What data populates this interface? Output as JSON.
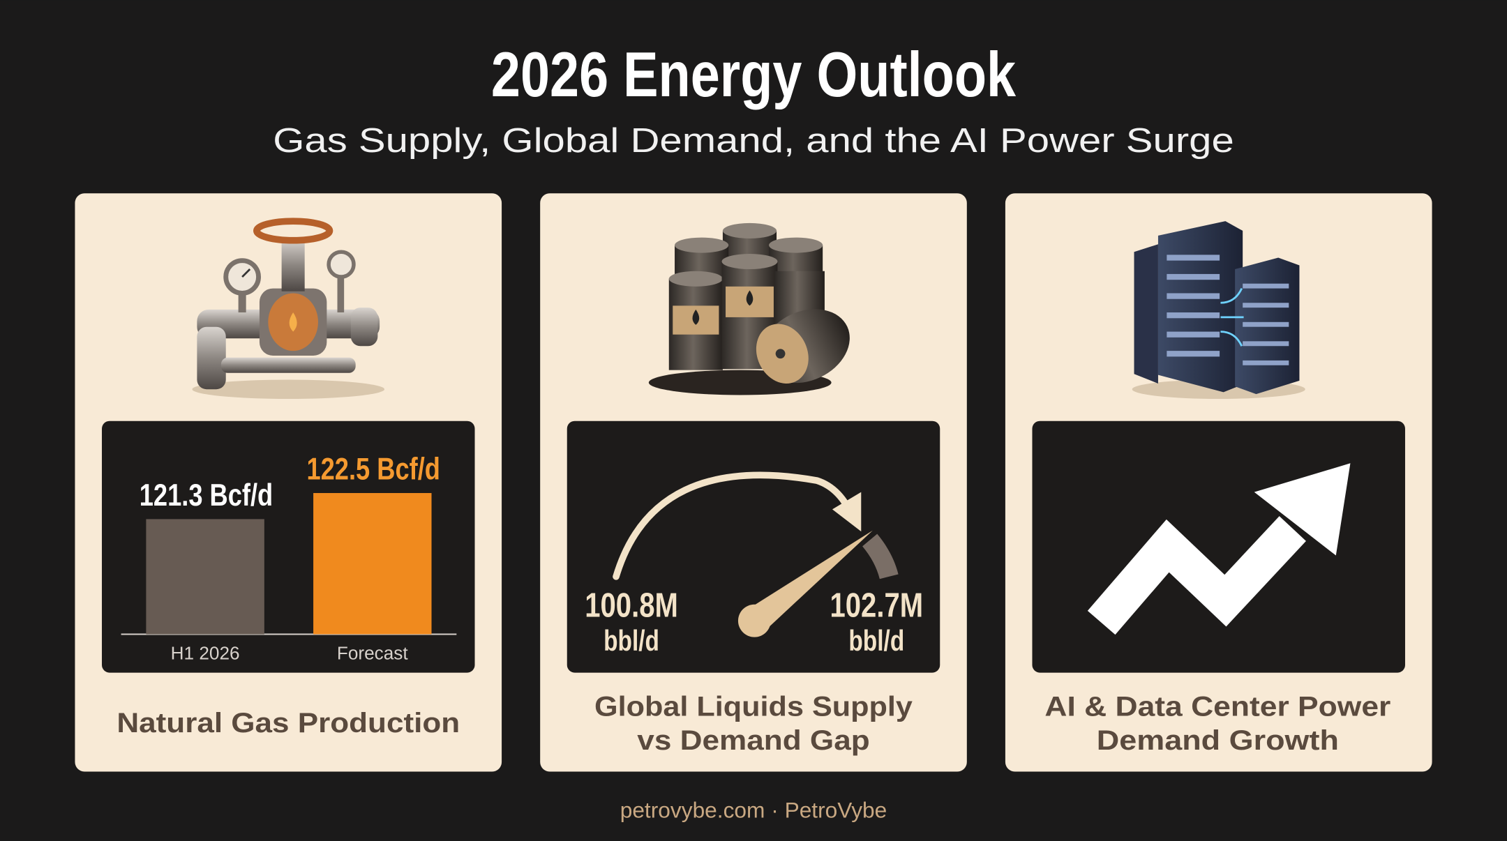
{
  "header": {
    "title": "2026 Energy Outlook",
    "subtitle": "Gas Supply, Global Demand, and the AI Power Surge"
  },
  "cards": [
    {
      "title_lines": [
        "Natural Gas Production"
      ]
    },
    {
      "title_lines": [
        "Global Liquids Supply",
        "vs Demand Gap"
      ],
      "gauge": {
        "start": {
          "value": "100.8M",
          "unit": "bbl/d"
        },
        "end": {
          "value": "102.7M",
          "unit": "bbl/d"
        }
      }
    },
    {
      "title_lines": [
        "AI & Data Center Power",
        "Demand Growth"
      ]
    }
  ],
  "chart_data": {
    "type": "bar",
    "categories": [
      "H1 2026",
      "Forecast"
    ],
    "values": [
      121.3,
      122.5
    ],
    "value_labels": [
      "121.3 Bcf/d",
      "122.5 Bcf/d"
    ],
    "colors": [
      "#675b53",
      "#f08a1e"
    ],
    "label_colors": [
      "#ffffff",
      "#f59a30"
    ],
    "ylim": [
      116,
      123.5
    ]
  },
  "footer": "petrovybe.com · PetroVybe"
}
